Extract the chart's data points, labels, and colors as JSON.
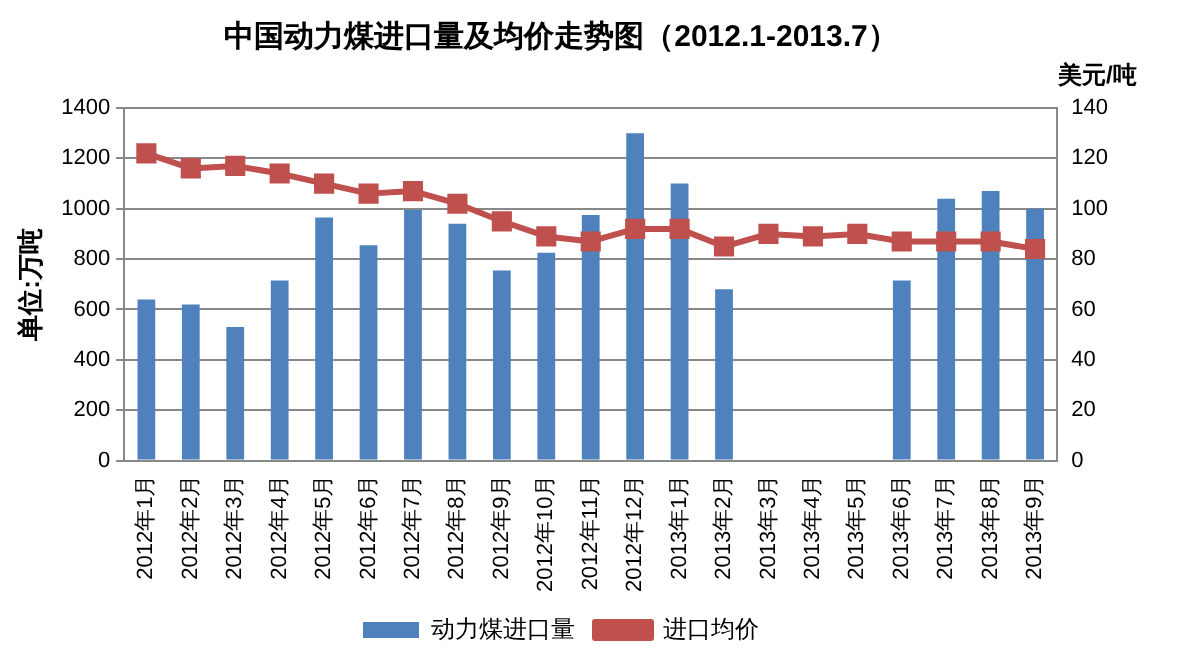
{
  "chart_data": {
    "type": "bar",
    "title": "中国动力煤进口量及均价走势图（2012.1-2013.7）",
    "ylabel": "单位:万吨",
    "y2label": "美元/吨",
    "categories": [
      "2012年1月",
      "2012年2月",
      "2012年3月",
      "2012年4月",
      "2012年5月",
      "2012年6月",
      "2012年7月",
      "2012年8月",
      "2012年9月",
      "2012年10月",
      "2012年11月",
      "2012年12月",
      "2013年1月",
      "2013年2月",
      "2013年3月",
      "2013年4月",
      "2013年5月",
      "2013年6月",
      "2013年7月",
      "2013年8月",
      "2013年9月"
    ],
    "series": [
      {
        "name": "动力煤进口量",
        "color": "#4f81bd",
        "values": [
          640,
          620,
          530,
          715,
          965,
          855,
          995,
          940,
          755,
          825,
          975,
          1300,
          1100,
          680,
          null,
          null,
          null,
          715,
          1040,
          1070,
          1000
        ]
      },
      {
        "name": "进口均价",
        "type": "line",
        "axis": "y2",
        "color": "#c0504d",
        "marker": "square",
        "values": [
          122,
          116,
          117,
          114,
          110,
          106,
          107,
          102,
          95,
          89,
          87,
          92,
          92,
          85,
          90,
          89,
          90,
          87,
          87,
          87,
          84
        ]
      }
    ],
    "ylim": [
      0,
      1400
    ],
    "yticks": [
      0,
      200,
      400,
      600,
      800,
      1000,
      1200,
      1400
    ],
    "y2lim": [
      0,
      140
    ],
    "y2ticks": [
      0,
      20,
      40,
      60,
      80,
      100,
      120,
      140
    ],
    "grid": "y",
    "legend": "bottom"
  }
}
